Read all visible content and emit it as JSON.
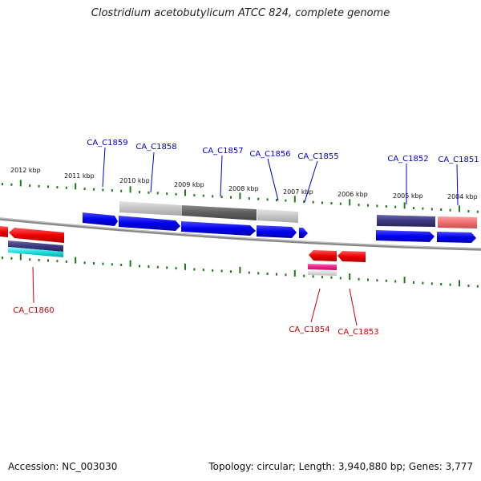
{
  "title": "Clostridium acetobutylicum ATCC 824, complete genome",
  "footer": {
    "accession": "Accession: NC_003030",
    "summary": "Topology: circular; Length: 3,940,880 bp; Genes: 3,777"
  },
  "colors": {
    "label_top": "#0000cc",
    "label_bottom": "#cc0000",
    "ticks": "#1a7a1a",
    "backbone": "#888888"
  },
  "ruler_labels": [
    "2012 kbp",
    "2011 kbp",
    "2010 kbp",
    "2009 kbp",
    "2008 kbp",
    "2007 kbp",
    "2006 kbp",
    "2005 kbp",
    "2004 kbp"
  ],
  "genes_top": [
    "CA_C1859",
    "CA_C1858",
    "CA_C1857",
    "CA_C1856",
    "CA_C1855",
    "CA_C1852",
    "CA_C1851"
  ],
  "genes_bottom": [
    "CA_C1860",
    "CA_C1854",
    "CA_C1853"
  ]
}
